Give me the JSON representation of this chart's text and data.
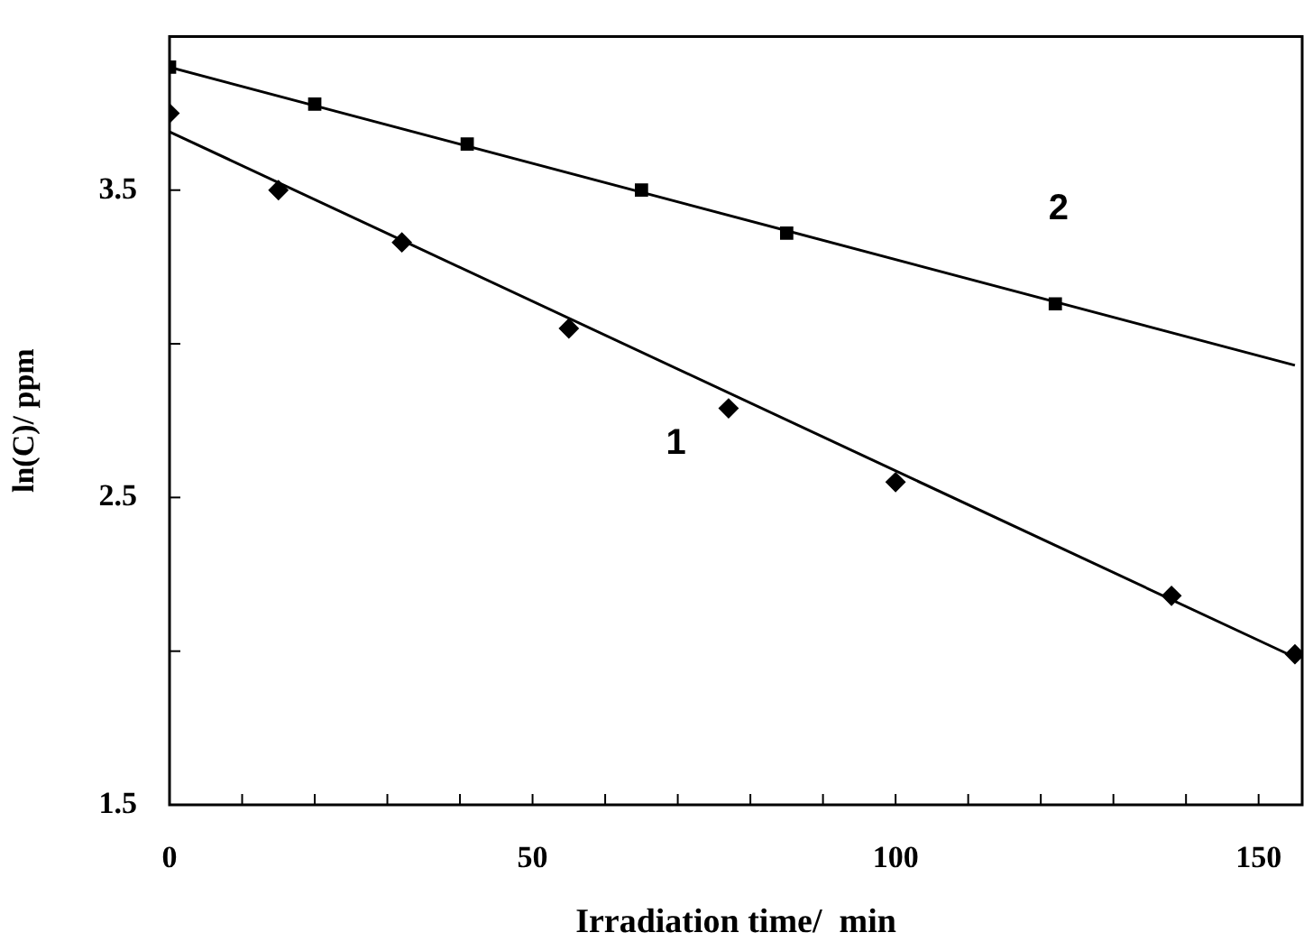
{
  "chart_data": {
    "type": "scatter",
    "xlabel": "Irradiation time/  min",
    "ylabel": "ln(C)/ ppm",
    "xlim": [
      0,
      156
    ],
    "ylim": [
      1.5,
      4.0
    ],
    "xticks": [
      0,
      {
        "value": 10,
        "label": null
      },
      {
        "value": 20,
        "label": null
      },
      {
        "value": 30,
        "label": null
      },
      {
        "value": 40,
        "label": null
      },
      50,
      {
        "value": 60,
        "label": null
      },
      {
        "value": 70,
        "label": null
      },
      {
        "value": 80,
        "label": null
      },
      {
        "value": 90,
        "label": null
      },
      100,
      {
        "value": 110,
        "label": null
      },
      {
        "value": 120,
        "label": null
      },
      {
        "value": 130,
        "label": null
      },
      {
        "value": 140,
        "label": null
      },
      150
    ],
    "yticks": [
      1.5,
      {
        "value": 2.0,
        "label": null
      },
      2.5,
      {
        "value": 3.0,
        "label": null
      },
      3.5
    ],
    "grid": false,
    "legend": false,
    "series": [
      {
        "marker": "diamond",
        "color": "#000000",
        "x": [
          0,
          15,
          32,
          55,
          77,
          100,
          138,
          155
        ],
        "values": [
          3.75,
          3.5,
          3.33,
          3.05,
          2.79,
          2.55,
          2.18,
          1.99
        ]
      },
      {
        "marker": "square",
        "color": "#000000",
        "x": [
          0,
          20,
          41,
          65,
          85,
          122
        ],
        "values": [
          3.9,
          3.78,
          3.65,
          3.5,
          3.36,
          3.13
        ]
      },
      {
        "type": "line",
        "name": "1",
        "marker": "none",
        "color": "#000000",
        "x": [
          0,
          155
        ],
        "values": [
          3.69,
          1.98
        ]
      },
      {
        "type": "line",
        "name": "2",
        "marker": "none",
        "color": "#000000",
        "x": [
          0,
          155
        ],
        "values": [
          3.9,
          2.93
        ]
      }
    ]
  }
}
